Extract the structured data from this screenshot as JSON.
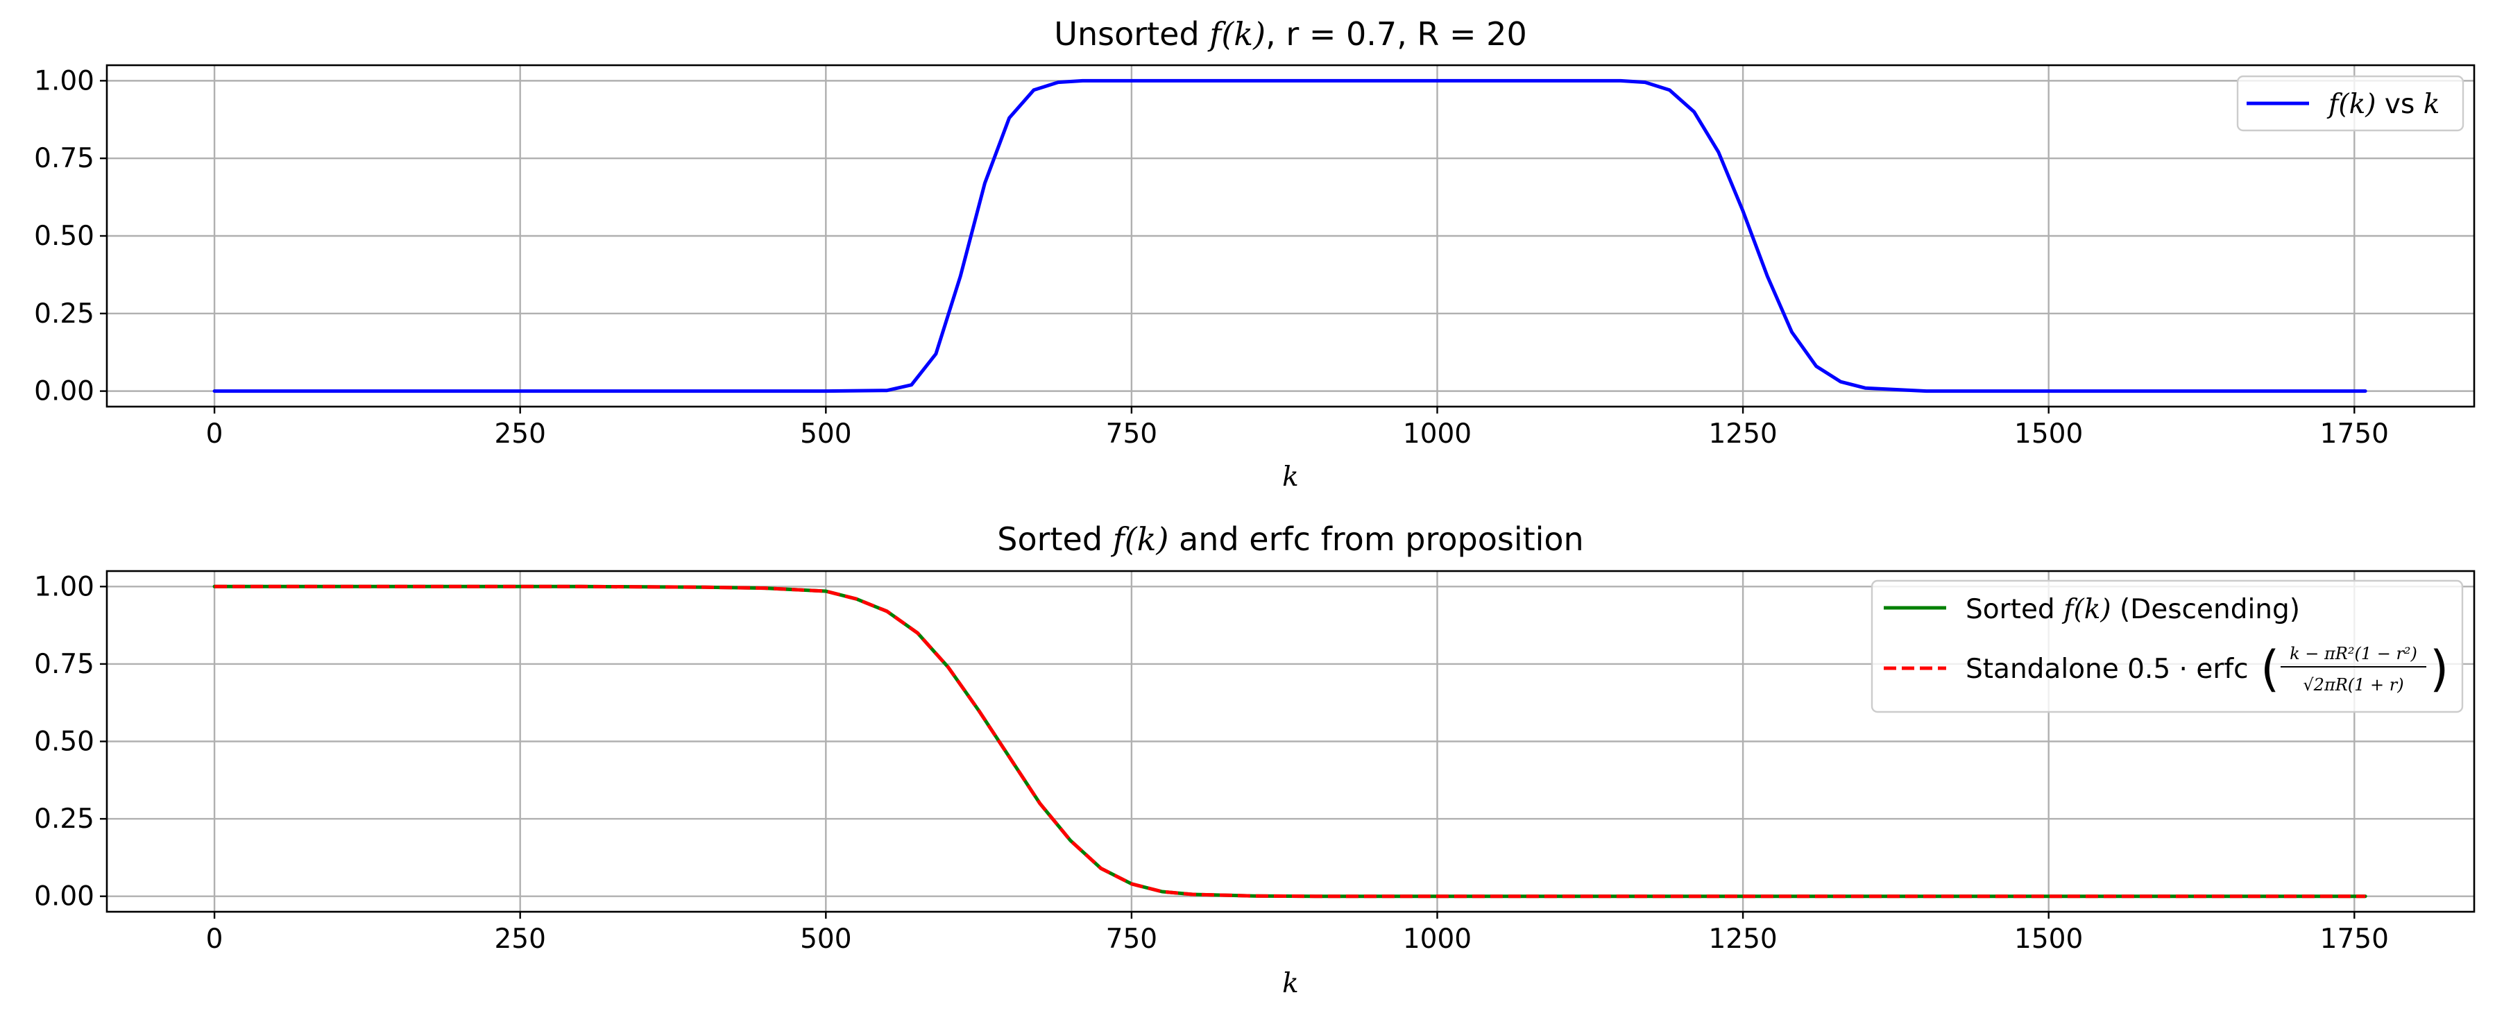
{
  "chart_data": [
    {
      "type": "line",
      "title_prefix": "Unsorted ",
      "title_math": "f(k)",
      "title_suffix": ", r = 0.7, R = 20",
      "xlabel": "k",
      "xlim": [
        -88,
        1848
      ],
      "ylim": [
        -0.05,
        1.05
      ],
      "xticks": [
        0,
        250,
        500,
        750,
        1000,
        1250,
        1500,
        1750
      ],
      "xtick_labels": [
        "0",
        "250",
        "500",
        "750",
        "1000",
        "1250",
        "1500",
        "1750"
      ],
      "yticks": [
        0,
        0.25,
        0.5,
        0.75,
        1.0
      ],
      "ytick_labels": [
        "0.00",
        "0.25",
        "0.50",
        "0.75",
        "1.00"
      ],
      "grid": true,
      "legend_position": "upper right",
      "series": [
        {
          "name": "f(k) vs k",
          "name_math": "f(k)",
          "name_text": " vs ",
          "name_math2": "k",
          "color": "#0000ff",
          "style": "solid",
          "x": [
            0,
            100,
            200,
            300,
            400,
            500,
            550,
            570,
            590,
            610,
            630,
            650,
            670,
            690,
            710,
            750,
            1000,
            1150,
            1170,
            1190,
            1210,
            1230,
            1250,
            1270,
            1290,
            1310,
            1330,
            1350,
            1400,
            1500,
            1600,
            1759
          ],
          "y": [
            0,
            0,
            0,
            0,
            0,
            0,
            0.002,
            0.02,
            0.12,
            0.37,
            0.67,
            0.88,
            0.97,
            0.995,
            1.0,
            1.0,
            1.0,
            1.0,
            0.995,
            0.97,
            0.9,
            0.77,
            0.58,
            0.37,
            0.19,
            0.08,
            0.03,
            0.01,
            0.0,
            0,
            0,
            0
          ]
        }
      ]
    },
    {
      "type": "line",
      "title_prefix": "Sorted ",
      "title_math": "f(k)",
      "title_suffix": " and erfc  from proposition",
      "xlabel": "k",
      "xlim": [
        -88,
        1848
      ],
      "ylim": [
        -0.05,
        1.05
      ],
      "xticks": [
        0,
        250,
        500,
        750,
        1000,
        1250,
        1500,
        1750
      ],
      "xtick_labels": [
        "0",
        "250",
        "500",
        "750",
        "1000",
        "1250",
        "1500",
        "1750"
      ],
      "yticks": [
        0,
        0.25,
        0.5,
        0.75,
        1.0
      ],
      "ytick_labels": [
        "0.00",
        "0.25",
        "0.50",
        "0.75",
        "1.00"
      ],
      "grid": true,
      "legend_position": "upper right",
      "series": [
        {
          "name": "Sorted f(k) (Descending)",
          "name_text": "Sorted ",
          "name_math": "f(k)",
          "name_text2": " (Descending)",
          "color": "#008000",
          "style": "solid",
          "x": [
            0,
            100,
            200,
            300,
            400,
            450,
            500,
            525,
            550,
            575,
            600,
            625,
            650,
            675,
            700,
            725,
            750,
            775,
            800,
            850,
            900,
            1000,
            1250,
            1500,
            1759
          ],
          "y": [
            1,
            1,
            1,
            1,
            0.998,
            0.995,
            0.985,
            0.96,
            0.92,
            0.85,
            0.74,
            0.6,
            0.45,
            0.3,
            0.18,
            0.09,
            0.04,
            0.015,
            0.006,
            0.001,
            0,
            0,
            0,
            0,
            0
          ]
        },
        {
          "name": "Standalone 0.5 · erfc((k − πR²(1 − r²)) / (√2πR(1 + r)))",
          "name_text": "Standalone 0.5 · erfc",
          "formula_numerator": "k − πR²(1 − r²)",
          "formula_denominator": "√2πR(1 + r)",
          "color": "#ff0000",
          "style": "dashed",
          "x": [
            0,
            100,
            200,
            300,
            400,
            450,
            500,
            525,
            550,
            575,
            600,
            625,
            650,
            675,
            700,
            725,
            750,
            775,
            800,
            850,
            900,
            1000,
            1250,
            1500,
            1759
          ],
          "y": [
            1,
            1,
            1,
            1,
            0.998,
            0.995,
            0.985,
            0.96,
            0.92,
            0.85,
            0.74,
            0.6,
            0.45,
            0.3,
            0.18,
            0.09,
            0.04,
            0.015,
            0.006,
            0.001,
            0,
            0,
            0,
            0,
            0
          ]
        }
      ]
    }
  ]
}
